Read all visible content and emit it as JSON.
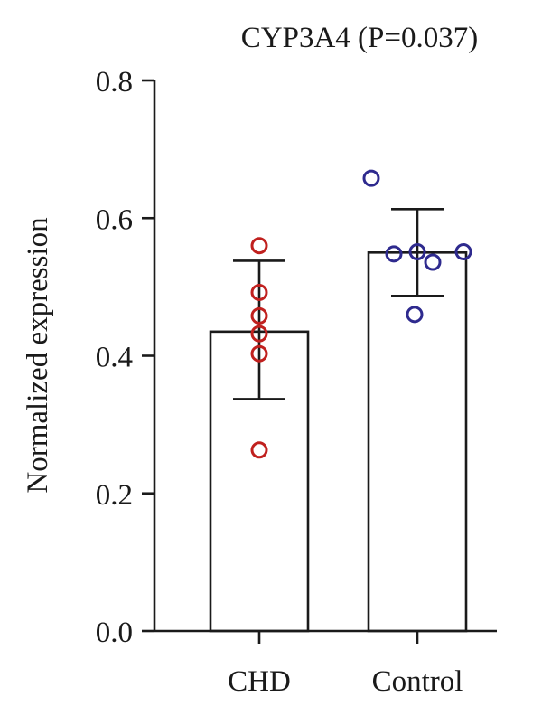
{
  "chart_data": {
    "type": "bar",
    "title": "CYP3A4 (P=0.037)",
    "xlabel": "",
    "ylabel": "Normalized expression",
    "ylim": [
      0.0,
      0.8
    ],
    "yticks": [
      "0.0",
      "0.2",
      "0.4",
      "0.6",
      "0.8"
    ],
    "categories": [
      "CHD",
      "Control"
    ],
    "values": [
      0.435,
      0.55
    ],
    "error_bars": [
      {
        "low": 0.337,
        "high": 0.538
      },
      {
        "low": 0.487,
        "high": 0.613
      }
    ],
    "points": [
      [
        0.56,
        0.492,
        0.458,
        0.432,
        0.403,
        0.263
      ],
      [
        0.658,
        0.551,
        0.548,
        0.536,
        0.551,
        0.46
      ]
    ],
    "point_colors": [
      "#c0201e",
      "#2e2a8e"
    ],
    "grid": false,
    "legend": "none"
  }
}
